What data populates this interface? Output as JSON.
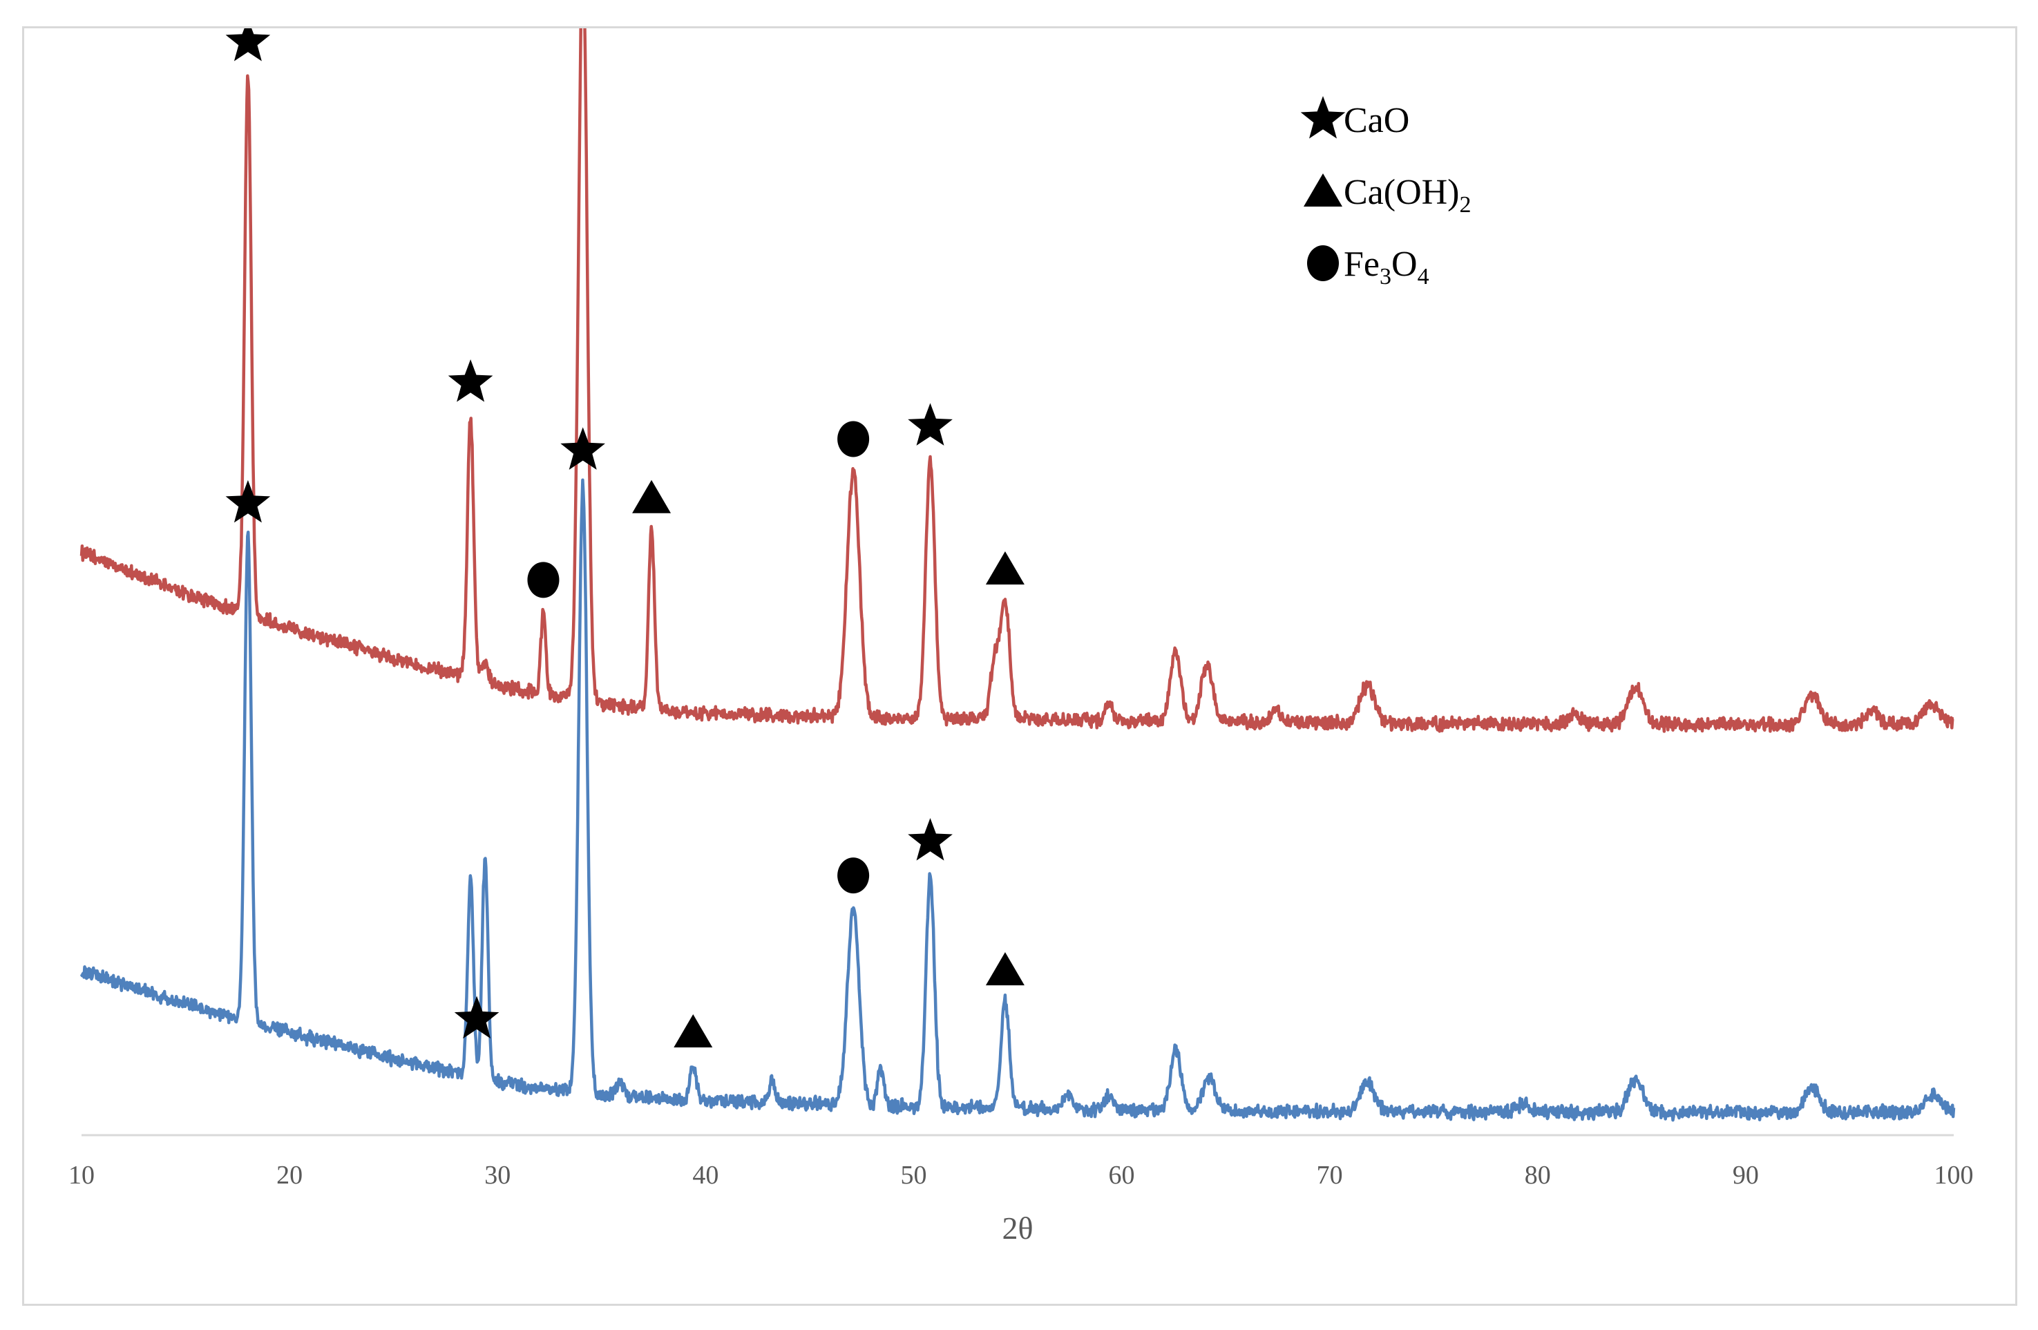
{
  "chart_data": {
    "type": "line",
    "title": "",
    "xlabel": "2θ",
    "ylabel": "",
    "xlim": [
      10,
      100
    ],
    "x_ticks": [
      10,
      20,
      30,
      40,
      50,
      60,
      70,
      80,
      90,
      100
    ],
    "y_axis_visible": false,
    "grid": false,
    "legend_position": "top-right",
    "legend": [
      {
        "symbol": "star",
        "label": "CaO",
        "sub": ""
      },
      {
        "symbol": "triangle",
        "label": "Ca(OH)",
        "sub": "2"
      },
      {
        "symbol": "circle",
        "label": "Fe",
        "sub": "3",
        "label2": "O",
        "sub2": "4"
      }
    ],
    "series": [
      {
        "color": "#c0504d",
        "baseline": [
          [
            10,
            0.4
          ],
          [
            15,
            0.345
          ],
          [
            20,
            0.3
          ],
          [
            25,
            0.258
          ],
          [
            30,
            0.222
          ],
          [
            35,
            0.197
          ],
          [
            40,
            0.184
          ],
          [
            50,
            0.178
          ],
          [
            60,
            0.175
          ],
          [
            70,
            0.172
          ],
          [
            80,
            0.17
          ],
          [
            90,
            0.17
          ],
          [
            100,
            0.17
          ]
        ],
        "peaks": [
          {
            "x": 18.0,
            "h": 0.72,
            "w": 0.16
          },
          {
            "x": 28.7,
            "h": 0.35,
            "w": 0.15
          },
          {
            "x": 29.4,
            "h": 0.025,
            "w": 0.15
          },
          {
            "x": 32.2,
            "h": 0.11,
            "w": 0.12
          },
          {
            "x": 34.1,
            "h": 1.0,
            "w": 0.21
          },
          {
            "x": 37.4,
            "h": 0.24,
            "w": 0.14
          },
          {
            "x": 47.1,
            "h": 0.33,
            "w": 0.3
          },
          {
            "x": 50.8,
            "h": 0.345,
            "w": 0.22
          },
          {
            "x": 53.9,
            "h": 0.08,
            "w": 0.2
          },
          {
            "x": 54.4,
            "h": 0.155,
            "w": 0.22
          },
          {
            "x": 59.4,
            "h": 0.02,
            "w": 0.2
          },
          {
            "x": 62.6,
            "h": 0.095,
            "w": 0.25
          },
          {
            "x": 64.1,
            "h": 0.075,
            "w": 0.28
          },
          {
            "x": 67.4,
            "h": 0.02,
            "w": 0.2
          },
          {
            "x": 71.8,
            "h": 0.05,
            "w": 0.35
          },
          {
            "x": 81.8,
            "h": 0.012,
            "w": 0.3
          },
          {
            "x": 84.7,
            "h": 0.05,
            "w": 0.35
          },
          {
            "x": 93.2,
            "h": 0.04,
            "w": 0.35
          },
          {
            "x": 96.1,
            "h": 0.018,
            "w": 0.3
          },
          {
            "x": 98.9,
            "h": 0.025,
            "w": 0.4
          }
        ],
        "markers": [
          {
            "symbol": "star",
            "x": 18.0
          },
          {
            "symbol": "star",
            "x": 28.7
          },
          {
            "symbol": "circle",
            "x": 32.2
          },
          {
            "symbol": "star",
            "x": 34.1
          },
          {
            "symbol": "triangle",
            "x": 37.4
          },
          {
            "symbol": "circle",
            "x": 47.1
          },
          {
            "symbol": "star",
            "x": 50.8
          },
          {
            "symbol": "triangle",
            "x": 54.4
          }
        ]
      },
      {
        "color": "#4f81bd",
        "baseline": [
          [
            10,
            0.31
          ],
          [
            15,
            0.265
          ],
          [
            20,
            0.225
          ],
          [
            25,
            0.19
          ],
          [
            30,
            0.158
          ],
          [
            35,
            0.14
          ],
          [
            40,
            0.132
          ],
          [
            50,
            0.125
          ],
          [
            60,
            0.12
          ],
          [
            70,
            0.118
          ],
          [
            80,
            0.117
          ],
          [
            90,
            0.117
          ],
          [
            100,
            0.117
          ]
        ],
        "peaks": [
          {
            "x": 18.0,
            "h": 0.66,
            "w": 0.16
          },
          {
            "x": 28.7,
            "h": 0.27,
            "w": 0.14
          },
          {
            "x": 29.4,
            "h": 0.3,
            "w": 0.14
          },
          {
            "x": 34.1,
            "h": 0.83,
            "w": 0.2
          },
          {
            "x": 35.9,
            "h": 0.02,
            "w": 0.2
          },
          {
            "x": 39.4,
            "h": 0.05,
            "w": 0.15
          },
          {
            "x": 43.2,
            "h": 0.03,
            "w": 0.15
          },
          {
            "x": 47.1,
            "h": 0.27,
            "w": 0.28
          },
          {
            "x": 48.4,
            "h": 0.05,
            "w": 0.15
          },
          {
            "x": 50.8,
            "h": 0.315,
            "w": 0.2
          },
          {
            "x": 54.4,
            "h": 0.145,
            "w": 0.2
          },
          {
            "x": 57.4,
            "h": 0.02,
            "w": 0.2
          },
          {
            "x": 59.4,
            "h": 0.02,
            "w": 0.2
          },
          {
            "x": 62.6,
            "h": 0.085,
            "w": 0.25
          },
          {
            "x": 64.2,
            "h": 0.045,
            "w": 0.3
          },
          {
            "x": 71.8,
            "h": 0.04,
            "w": 0.35
          },
          {
            "x": 79.3,
            "h": 0.012,
            "w": 0.3
          },
          {
            "x": 84.7,
            "h": 0.045,
            "w": 0.35
          },
          {
            "x": 93.2,
            "h": 0.035,
            "w": 0.35
          },
          {
            "x": 99.0,
            "h": 0.025,
            "w": 0.4
          }
        ],
        "markers": [
          {
            "symbol": "star",
            "x": 18.0
          },
          {
            "symbol": "star",
            "x": 29.0
          },
          {
            "symbol": "star",
            "x": 34.1
          },
          {
            "symbol": "triangle",
            "x": 39.4
          },
          {
            "symbol": "circle",
            "x": 47.1
          },
          {
            "symbol": "star",
            "x": 50.8
          },
          {
            "symbol": "triangle",
            "x": 54.4
          }
        ]
      }
    ]
  }
}
